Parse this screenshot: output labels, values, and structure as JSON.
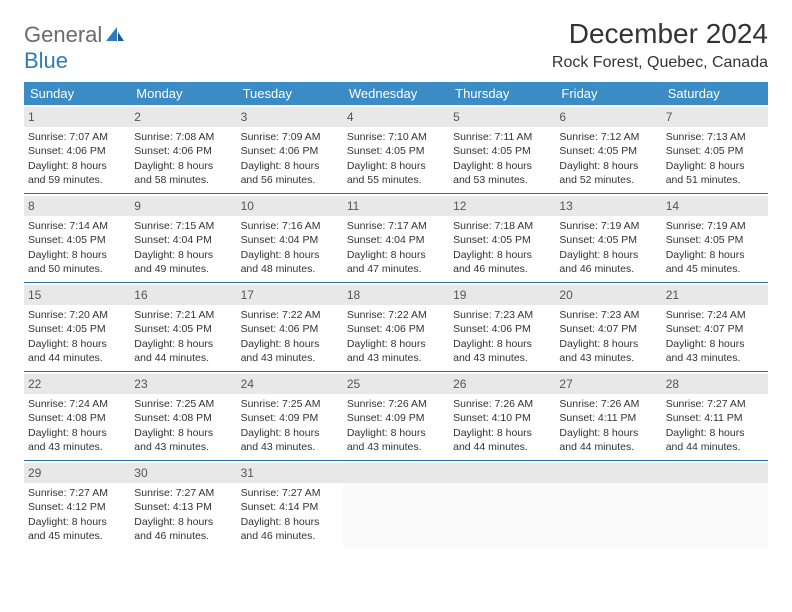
{
  "logo": {
    "word1": "General",
    "word2": "Blue"
  },
  "page": {
    "title": "December 2024",
    "location": "Rock Forest, Quebec, Canada"
  },
  "calendar": {
    "header_bg": "#3b8bc4",
    "header_text": "#ffffff",
    "daybar_bg": "#e8e8e8",
    "week_border": "#2b6fa3",
    "font_size_header": 13,
    "font_size_day": 10.5,
    "headers": [
      "Sunday",
      "Monday",
      "Tuesday",
      "Wednesday",
      "Thursday",
      "Friday",
      "Saturday"
    ],
    "weeks": [
      [
        {
          "day": "1",
          "sunrise": "Sunrise: 7:07 AM",
          "sunset": "Sunset: 4:06 PM",
          "daylight1": "Daylight: 8 hours",
          "daylight2": "and 59 minutes."
        },
        {
          "day": "2",
          "sunrise": "Sunrise: 7:08 AM",
          "sunset": "Sunset: 4:06 PM",
          "daylight1": "Daylight: 8 hours",
          "daylight2": "and 58 minutes."
        },
        {
          "day": "3",
          "sunrise": "Sunrise: 7:09 AM",
          "sunset": "Sunset: 4:06 PM",
          "daylight1": "Daylight: 8 hours",
          "daylight2": "and 56 minutes."
        },
        {
          "day": "4",
          "sunrise": "Sunrise: 7:10 AM",
          "sunset": "Sunset: 4:05 PM",
          "daylight1": "Daylight: 8 hours",
          "daylight2": "and 55 minutes."
        },
        {
          "day": "5",
          "sunrise": "Sunrise: 7:11 AM",
          "sunset": "Sunset: 4:05 PM",
          "daylight1": "Daylight: 8 hours",
          "daylight2": "and 53 minutes."
        },
        {
          "day": "6",
          "sunrise": "Sunrise: 7:12 AM",
          "sunset": "Sunset: 4:05 PM",
          "daylight1": "Daylight: 8 hours",
          "daylight2": "and 52 minutes."
        },
        {
          "day": "7",
          "sunrise": "Sunrise: 7:13 AM",
          "sunset": "Sunset: 4:05 PM",
          "daylight1": "Daylight: 8 hours",
          "daylight2": "and 51 minutes."
        }
      ],
      [
        {
          "day": "8",
          "sunrise": "Sunrise: 7:14 AM",
          "sunset": "Sunset: 4:05 PM",
          "daylight1": "Daylight: 8 hours",
          "daylight2": "and 50 minutes."
        },
        {
          "day": "9",
          "sunrise": "Sunrise: 7:15 AM",
          "sunset": "Sunset: 4:04 PM",
          "daylight1": "Daylight: 8 hours",
          "daylight2": "and 49 minutes."
        },
        {
          "day": "10",
          "sunrise": "Sunrise: 7:16 AM",
          "sunset": "Sunset: 4:04 PM",
          "daylight1": "Daylight: 8 hours",
          "daylight2": "and 48 minutes."
        },
        {
          "day": "11",
          "sunrise": "Sunrise: 7:17 AM",
          "sunset": "Sunset: 4:04 PM",
          "daylight1": "Daylight: 8 hours",
          "daylight2": "and 47 minutes."
        },
        {
          "day": "12",
          "sunrise": "Sunrise: 7:18 AM",
          "sunset": "Sunset: 4:05 PM",
          "daylight1": "Daylight: 8 hours",
          "daylight2": "and 46 minutes."
        },
        {
          "day": "13",
          "sunrise": "Sunrise: 7:19 AM",
          "sunset": "Sunset: 4:05 PM",
          "daylight1": "Daylight: 8 hours",
          "daylight2": "and 46 minutes."
        },
        {
          "day": "14",
          "sunrise": "Sunrise: 7:19 AM",
          "sunset": "Sunset: 4:05 PM",
          "daylight1": "Daylight: 8 hours",
          "daylight2": "and 45 minutes."
        }
      ],
      [
        {
          "day": "15",
          "sunrise": "Sunrise: 7:20 AM",
          "sunset": "Sunset: 4:05 PM",
          "daylight1": "Daylight: 8 hours",
          "daylight2": "and 44 minutes."
        },
        {
          "day": "16",
          "sunrise": "Sunrise: 7:21 AM",
          "sunset": "Sunset: 4:05 PM",
          "daylight1": "Daylight: 8 hours",
          "daylight2": "and 44 minutes."
        },
        {
          "day": "17",
          "sunrise": "Sunrise: 7:22 AM",
          "sunset": "Sunset: 4:06 PM",
          "daylight1": "Daylight: 8 hours",
          "daylight2": "and 43 minutes."
        },
        {
          "day": "18",
          "sunrise": "Sunrise: 7:22 AM",
          "sunset": "Sunset: 4:06 PM",
          "daylight1": "Daylight: 8 hours",
          "daylight2": "and 43 minutes."
        },
        {
          "day": "19",
          "sunrise": "Sunrise: 7:23 AM",
          "sunset": "Sunset: 4:06 PM",
          "daylight1": "Daylight: 8 hours",
          "daylight2": "and 43 minutes."
        },
        {
          "day": "20",
          "sunrise": "Sunrise: 7:23 AM",
          "sunset": "Sunset: 4:07 PM",
          "daylight1": "Daylight: 8 hours",
          "daylight2": "and 43 minutes."
        },
        {
          "day": "21",
          "sunrise": "Sunrise: 7:24 AM",
          "sunset": "Sunset: 4:07 PM",
          "daylight1": "Daylight: 8 hours",
          "daylight2": "and 43 minutes."
        }
      ],
      [
        {
          "day": "22",
          "sunrise": "Sunrise: 7:24 AM",
          "sunset": "Sunset: 4:08 PM",
          "daylight1": "Daylight: 8 hours",
          "daylight2": "and 43 minutes."
        },
        {
          "day": "23",
          "sunrise": "Sunrise: 7:25 AM",
          "sunset": "Sunset: 4:08 PM",
          "daylight1": "Daylight: 8 hours",
          "daylight2": "and 43 minutes."
        },
        {
          "day": "24",
          "sunrise": "Sunrise: 7:25 AM",
          "sunset": "Sunset: 4:09 PM",
          "daylight1": "Daylight: 8 hours",
          "daylight2": "and 43 minutes."
        },
        {
          "day": "25",
          "sunrise": "Sunrise: 7:26 AM",
          "sunset": "Sunset: 4:09 PM",
          "daylight1": "Daylight: 8 hours",
          "daylight2": "and 43 minutes."
        },
        {
          "day": "26",
          "sunrise": "Sunrise: 7:26 AM",
          "sunset": "Sunset: 4:10 PM",
          "daylight1": "Daylight: 8 hours",
          "daylight2": "and 44 minutes."
        },
        {
          "day": "27",
          "sunrise": "Sunrise: 7:26 AM",
          "sunset": "Sunset: 4:11 PM",
          "daylight1": "Daylight: 8 hours",
          "daylight2": "and 44 minutes."
        },
        {
          "day": "28",
          "sunrise": "Sunrise: 7:27 AM",
          "sunset": "Sunset: 4:11 PM",
          "daylight1": "Daylight: 8 hours",
          "daylight2": "and 44 minutes."
        }
      ],
      [
        {
          "day": "29",
          "sunrise": "Sunrise: 7:27 AM",
          "sunset": "Sunset: 4:12 PM",
          "daylight1": "Daylight: 8 hours",
          "daylight2": "and 45 minutes."
        },
        {
          "day": "30",
          "sunrise": "Sunrise: 7:27 AM",
          "sunset": "Sunset: 4:13 PM",
          "daylight1": "Daylight: 8 hours",
          "daylight2": "and 46 minutes."
        },
        {
          "day": "31",
          "sunrise": "Sunrise: 7:27 AM",
          "sunset": "Sunset: 4:14 PM",
          "daylight1": "Daylight: 8 hours",
          "daylight2": "and 46 minutes."
        },
        {
          "day": "",
          "empty": true
        },
        {
          "day": "",
          "empty": true
        },
        {
          "day": "",
          "empty": true
        },
        {
          "day": "",
          "empty": true
        }
      ]
    ]
  }
}
